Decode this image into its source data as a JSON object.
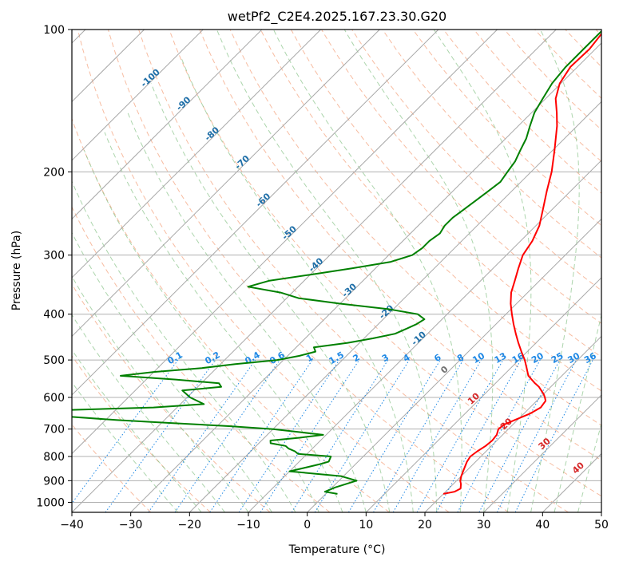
{
  "chart_data": {
    "type": "line",
    "title": "wetPf2_C2E4.2025.167.23.30.G20",
    "xlabel": "Temperature (°C)",
    "ylabel": "Pressure (hPa)",
    "xlim": [
      -40,
      50
    ],
    "ylim": [
      1050,
      100
    ],
    "y_scale": "log",
    "x_ticks": [
      "−40",
      "−30",
      "−20",
      "−10",
      "0",
      "10",
      "20",
      "30",
      "40",
      "50"
    ],
    "y_ticks": [
      100,
      200,
      300,
      400,
      500,
      600,
      700,
      800,
      900,
      1000
    ],
    "grid": true,
    "series": [
      {
        "key": "temperature",
        "color": "#ff0000",
        "p": [
          960,
          950,
          935,
          915,
          900,
          880,
          860,
          840,
          820,
          800,
          780,
          760,
          740,
          720,
          700,
          685,
          670,
          650,
          630,
          610,
          600,
          590,
          580,
          570,
          560,
          550,
          540,
          520,
          500,
          480,
          460,
          440,
          420,
          400,
          380,
          360,
          340,
          320,
          300,
          280,
          260,
          240,
          220,
          200,
          180,
          160,
          150,
          140,
          130,
          120,
          110,
          100
        ],
        "t": [
          20.0,
          21.5,
          22.0,
          21.3,
          20.6,
          20.0,
          19.5,
          19.0,
          18.5,
          18.2,
          18.5,
          19.0,
          19.2,
          19.0,
          18.3,
          18.5,
          19.5,
          21.0,
          21.8,
          21.5,
          20.8,
          20.0,
          19.0,
          18.0,
          16.7,
          15.5,
          14.3,
          12.7,
          11.0,
          9.0,
          7.0,
          5.0,
          3.0,
          1.0,
          -1.0,
          -2.8,
          -4.2,
          -5.7,
          -7.2,
          -8.0,
          -9.4,
          -11.6,
          -14.0,
          -16.5,
          -19.7,
          -23.4,
          -25.7,
          -28.3,
          -30.2,
          -31.2,
          -31.0,
          -31.7
        ]
      },
      {
        "key": "dewpoint",
        "color": "#008000",
        "p": [
          960,
          950,
          930,
          900,
          880,
          860,
          845,
          830,
          820,
          800,
          790,
          780,
          770,
          760,
          750,
          740,
          730,
          720,
          700,
          690,
          680,
          670,
          660,
          650,
          640,
          630,
          620,
          600,
          580,
          570,
          560,
          550,
          540,
          530,
          520,
          510,
          500,
          490,
          480,
          470,
          460,
          450,
          440,
          430,
          420,
          410,
          400,
          390,
          380,
          370,
          360,
          350,
          340,
          330,
          320,
          310,
          300,
          290,
          280,
          270,
          260,
          250,
          240,
          230,
          220,
          210,
          200,
          190,
          180,
          170,
          160,
          150,
          140,
          130,
          120,
          110,
          100
        ],
        "td": [
          2.0,
          -0.5,
          0.5,
          3.0,
          -0.5,
          -10.0,
          -8.0,
          -6.0,
          -5.0,
          -5.5,
          -11.5,
          -12.5,
          -14.0,
          -15.0,
          -18.0,
          -18.5,
          -14.0,
          -10.5,
          -20.0,
          -28.0,
          -38.0,
          -48.0,
          -56.0,
          -63.0,
          -62.0,
          -44.0,
          -36.0,
          -39.5,
          -42.0,
          -36.0,
          -37.0,
          -45.0,
          -55.0,
          -50.0,
          -42.5,
          -37.5,
          -31.0,
          -28.0,
          -26.0,
          -27.0,
          -22.0,
          -18.5,
          -15.5,
          -14.5,
          -13.5,
          -13.0,
          -15.0,
          -21.0,
          -30.0,
          -38.0,
          -42.0,
          -48.5,
          -46.0,
          -40.0,
          -34.0,
          -28.5,
          -26.0,
          -25.5,
          -25.5,
          -25.0,
          -25.5,
          -25.5,
          -25.0,
          -24.5,
          -24.0,
          -23.5,
          -24.0,
          -24.5,
          -25.5,
          -26.5,
          -28.0,
          -29.5,
          -30.5,
          -31.5,
          -32.0,
          -32.0,
          -32.0
        ]
      }
    ],
    "isotherm_labels": [
      "-100",
      "-90",
      "-80",
      "-70",
      "-60",
      "-50",
      "-40",
      "-30",
      "-20",
      "-10"
    ],
    "mixing_ratio_labels": [
      "0.1",
      "0.2",
      "0.4",
      "0.6",
      "1",
      "1.5",
      "2",
      "3",
      "4",
      "6",
      "8",
      "10",
      "13",
      "16",
      "20",
      "25",
      "30",
      "36"
    ],
    "moist_adiabat_labels": [
      "0",
      "10",
      "20",
      "30",
      "40"
    ],
    "colors": {
      "isobar": "#b0b0b0",
      "isotherm": "#a8a8a8",
      "dry_adiabat": "#f4a582",
      "moist_adiabat": "#7fbf7f",
      "mixing_ratio": "#1e88e5",
      "isotherm_label": "#1f6fa8",
      "moist_label_zero": "#707070",
      "moist_label_warm": "#d62728"
    }
  }
}
